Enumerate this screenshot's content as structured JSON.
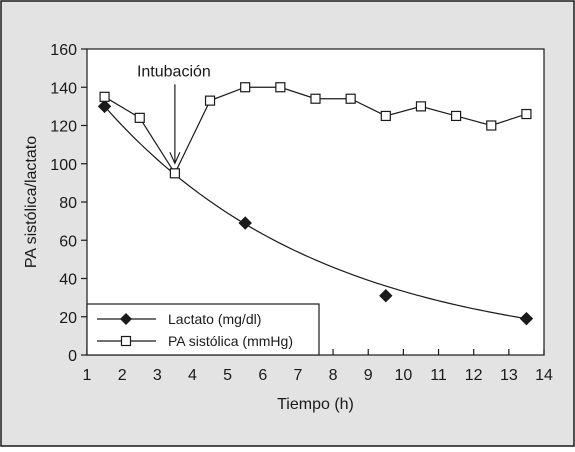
{
  "chart_data": {
    "type": "line",
    "xlabel": "Tiempo (h)",
    "ylabel": "PA sistólica/lactato",
    "xlim": [
      1,
      14
    ],
    "ylim": [
      0,
      160
    ],
    "x_ticks": [
      "1",
      "2",
      "3",
      "4",
      "5",
      "6",
      "7",
      "8",
      "9",
      "10",
      "11",
      "12",
      "13",
      "14"
    ],
    "y_ticks": [
      "0",
      "20",
      "40",
      "60",
      "80",
      "100",
      "120",
      "140",
      "160"
    ],
    "grid": false,
    "legend_position": "bottom-left",
    "series": [
      {
        "name": "Lactato (mg/dl)",
        "marker": "diamond-filled",
        "style": "markers-with-fitted-curve",
        "color": "#1a1a1a",
        "x": [
          1.5,
          5.5,
          9.5,
          13.5
        ],
        "y": [
          130,
          69,
          31,
          19
        ]
      },
      {
        "name": "PA sistólica (mmHg)",
        "marker": "square-open",
        "style": "markers-with-line",
        "color": "#1a1a1a",
        "x": [
          1.5,
          2.5,
          3.5,
          4.5,
          5.5,
          6.5,
          7.5,
          8.5,
          9.5,
          10.5,
          11.5,
          12.5,
          13.5
        ],
        "y": [
          135,
          124,
          95,
          133,
          140,
          140,
          134,
          134,
          125,
          130,
          125,
          120,
          126
        ]
      }
    ],
    "annotations": [
      {
        "text": "Intubación",
        "target_x": 3.5,
        "target_y": 95,
        "arrow": "down"
      }
    ]
  },
  "colors": {
    "background": "#e3e3e3",
    "plot_area": "#ffffff",
    "ink": "#1a1a1a"
  }
}
